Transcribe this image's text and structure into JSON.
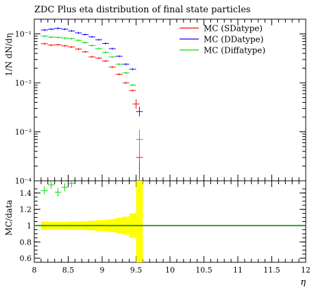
{
  "chart_data": [
    {
      "type": "scatter",
      "title": "ZDC Plus eta distribution of final state particles",
      "xlabel": "η",
      "ylabel": "1/N dN/dη",
      "xlim": [
        8,
        12
      ],
      "ylim": [
        0.0001,
        0.2
      ],
      "yscale": "log",
      "legend_position": "top-right",
      "y_tick_labels": [
        "10⁻¹",
        "10⁻²",
        "10⁻³",
        "10⁻⁴"
      ],
      "x": [
        8.15,
        8.25,
        8.35,
        8.45,
        8.55,
        8.65,
        8.75,
        8.85,
        8.95,
        9.05,
        9.15,
        9.25,
        9.35,
        9.45,
        9.55
      ],
      "series": [
        {
          "name": "MC (SDatype)",
          "color": "#ff0000",
          "values": [
            0.063,
            0.059,
            0.06,
            0.057,
            0.054,
            0.049,
            0.043,
            0.034,
            0.032,
            0.028,
            0.021,
            0.015,
            0.01,
            0.007,
            0.0037,
            0.0003
          ],
          "x": [
            8.15,
            8.25,
            8.35,
            8.45,
            8.55,
            8.65,
            8.75,
            8.85,
            8.95,
            9.05,
            9.15,
            9.25,
            9.35,
            9.45,
            9.5,
            9.55
          ]
        },
        {
          "name": "MC (DDatype)",
          "color": "#0000ff",
          "values": [
            0.12,
            0.125,
            0.13,
            0.125,
            0.115,
            0.105,
            0.097,
            0.087,
            0.076,
            0.064,
            0.05,
            0.035,
            0.024,
            0.019,
            0.0026
          ],
          "x": [
            8.15,
            8.25,
            8.35,
            8.45,
            8.55,
            8.65,
            8.75,
            8.85,
            8.95,
            9.05,
            9.15,
            9.25,
            9.35,
            9.45,
            9.55
          ]
        },
        {
          "name": "MC (Diffatype)",
          "color": "#00dd00",
          "values": [
            0.09,
            0.086,
            0.085,
            0.082,
            0.08,
            0.074,
            0.066,
            0.058,
            0.05,
            0.042,
            0.034,
            0.024,
            0.016,
            0.009,
            0.0007
          ],
          "x": [
            8.15,
            8.25,
            8.35,
            8.45,
            8.55,
            8.65,
            8.75,
            8.85,
            8.95,
            9.05,
            9.15,
            9.25,
            9.35,
            9.45,
            9.55
          ]
        }
      ]
    },
    {
      "type": "scatter",
      "xlabel": "η",
      "ylabel": "MC/data",
      "xlim": [
        8,
        12
      ],
      "ylim": [
        0.55,
        1.55
      ],
      "y_ticks": [
        0.6,
        0.8,
        1,
        1.2,
        1.4
      ],
      "x_ticks": [
        8,
        8.5,
        9,
        9.5,
        10,
        10.5,
        11,
        11.5,
        12
      ],
      "reference_line": 1,
      "ratio_series": [
        {
          "name": "MC (Diffatype)",
          "color": "#00dd00",
          "x": [
            8.15,
            8.25,
            8.35,
            8.45,
            8.55
          ],
          "values": [
            1.43,
            1.5,
            1.41,
            1.47,
            1.52
          ]
        }
      ],
      "uncertainty_band": {
        "color": "#ffff00",
        "x": [
          8.1,
          8.2,
          8.3,
          8.4,
          8.5,
          8.6,
          8.7,
          8.8,
          8.9,
          9.0,
          9.1,
          9.2,
          9.3,
          9.4,
          9.5,
          9.6
        ],
        "half_width": [
          0.05,
          0.045,
          0.045,
          0.045,
          0.05,
          0.05,
          0.055,
          0.06,
          0.065,
          0.07,
          0.08,
          0.095,
          0.11,
          0.15,
          1.0
        ]
      }
    }
  ]
}
